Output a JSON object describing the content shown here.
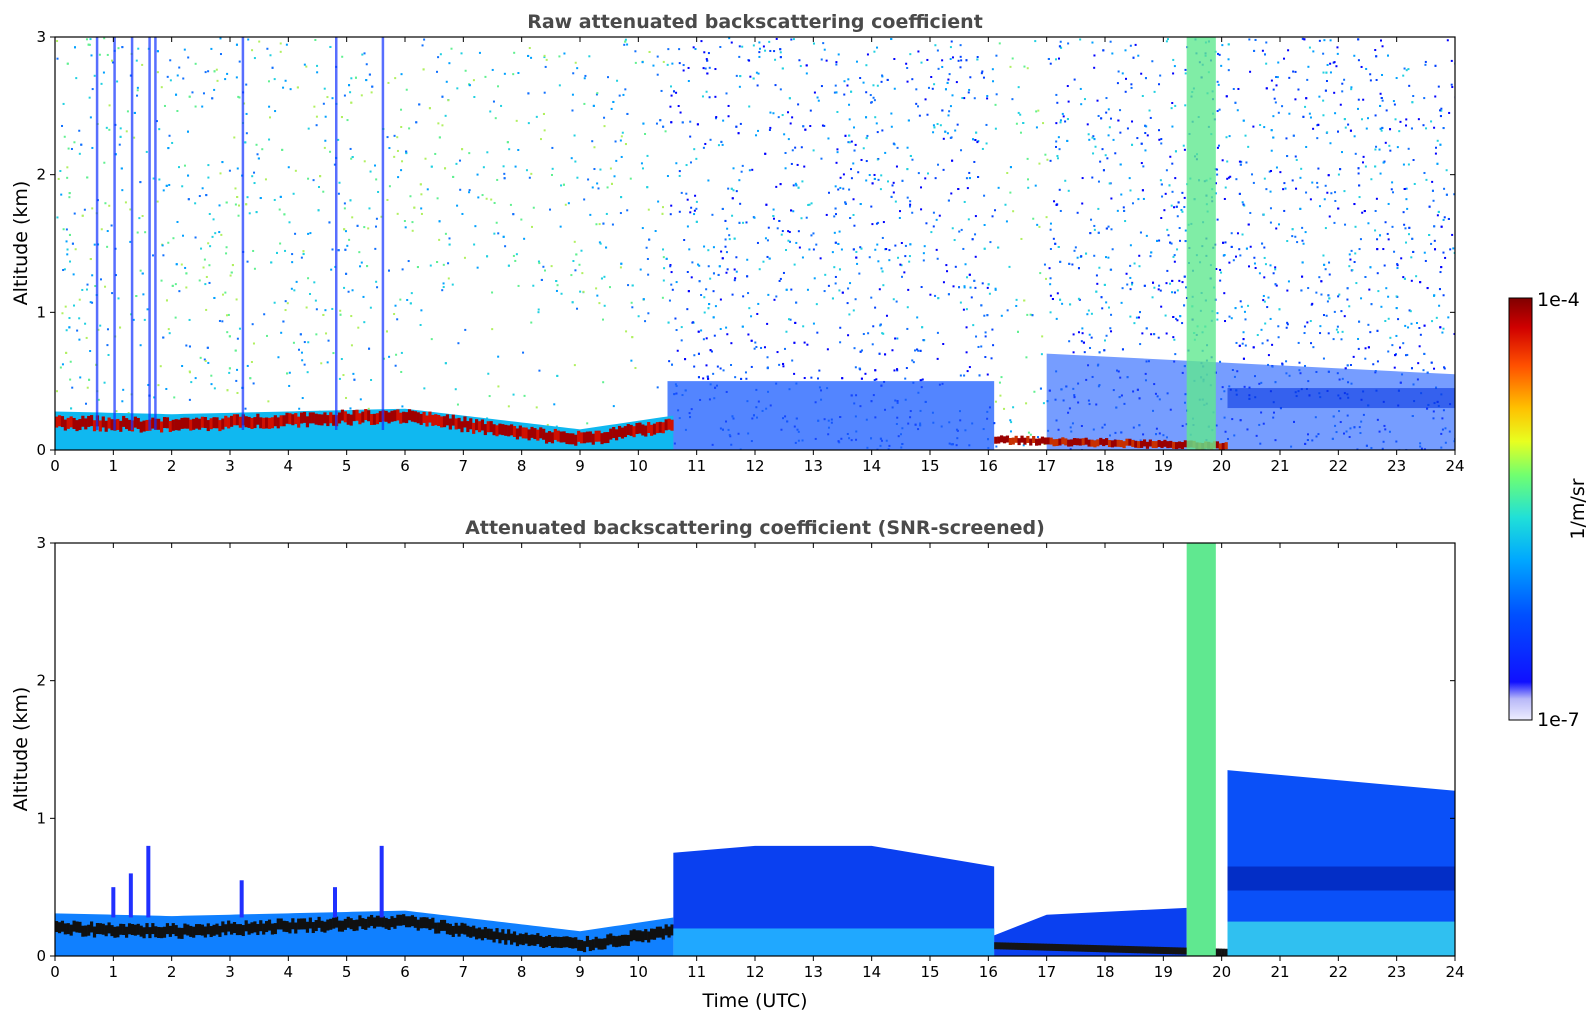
{
  "chart_data": [
    {
      "type": "heatmap",
      "title": "Raw attenuated backscattering coefficient",
      "xlabel": "",
      "ylabel": "Altitude (km)",
      "xlim": [
        0,
        24
      ],
      "ylim": [
        0,
        3
      ],
      "x_ticks": [
        "0",
        "1",
        "2",
        "3",
        "4",
        "5",
        "6",
        "7",
        "8",
        "9",
        "10",
        "11",
        "12",
        "13",
        "14",
        "15",
        "16",
        "17",
        "18",
        "19",
        "20",
        "21",
        "22",
        "23",
        "24"
      ],
      "y_ticks": [
        "0",
        "1",
        "2",
        "3"
      ],
      "features": {
        "aerosol_layer_top_km": [
          {
            "t": 0,
            "z": 0.28
          },
          {
            "t": 2,
            "z": 0.26
          },
          {
            "t": 4,
            "z": 0.28
          },
          {
            "t": 6,
            "z": 0.3
          },
          {
            "t": 8,
            "z": 0.2
          },
          {
            "t": 9,
            "z": 0.15
          },
          {
            "t": 10.6,
            "z": 0.25
          }
        ],
        "strong_layer_km": [
          {
            "t": 0,
            "z": 0.2
          },
          {
            "t": 2,
            "z": 0.18
          },
          {
            "t": 4,
            "z": 0.22
          },
          {
            "t": 6,
            "z": 0.25
          },
          {
            "t": 8,
            "z": 0.12
          },
          {
            "t": 9,
            "z": 0.08
          },
          {
            "t": 10.6,
            "z": 0.18
          }
        ],
        "noise_regions": [
          {
            "t_start": 0,
            "t_end": 10.5,
            "level": "sparse"
          },
          {
            "t_start": 10.5,
            "t_end": 16.1,
            "level": "dense"
          },
          {
            "t_start": 16.1,
            "t_end": 17,
            "level": "sparse"
          },
          {
            "t_start": 17,
            "t_end": 24,
            "level": "dense"
          }
        ],
        "precip_column_utc": [
          19.4,
          19.9
        ],
        "fog_band_utc": [
          16.1,
          20.1
        ]
      }
    },
    {
      "type": "heatmap",
      "title": "Attenuated backscattering coefficient (SNR-screened)",
      "xlabel": "Time (UTC)",
      "ylabel": "Altitude (km)",
      "xlim": [
        0,
        24
      ],
      "ylim": [
        0,
        3
      ],
      "x_ticks": [
        "0",
        "1",
        "2",
        "3",
        "4",
        "5",
        "6",
        "7",
        "8",
        "9",
        "10",
        "11",
        "12",
        "13",
        "14",
        "15",
        "16",
        "17",
        "18",
        "19",
        "20",
        "21",
        "22",
        "23",
        "24"
      ],
      "y_ticks": [
        "0",
        "1",
        "2",
        "3"
      ],
      "features": {
        "screened_layer_top_km": [
          {
            "t": 10.6,
            "z": 0.78
          },
          {
            "t": 12,
            "z": 0.8
          },
          {
            "t": 14,
            "z": 0.78
          },
          {
            "t": 16.1,
            "z": 0.65
          },
          {
            "t": 17,
            "z": 0.3
          },
          {
            "t": 19.4,
            "z": 0.35
          },
          {
            "t": 20.1,
            "z": 1.35
          },
          {
            "t": 24,
            "z": 1.2
          }
        ],
        "precip_column_utc": [
          19.4,
          19.9
        ]
      }
    }
  ],
  "colorbar": {
    "label": "1/m/sr",
    "max_label": "1e-4",
    "min_label": "1e-7",
    "scale": "log"
  },
  "colors": {
    "title": "#4a4a4a",
    "colormap": [
      "#e8e8ff",
      "#c8c8ff",
      "#0000ff",
      "#0060ff",
      "#00b0ff",
      "#20e0d0",
      "#80ff60",
      "#e0ff20",
      "#ffd000",
      "#ff7000",
      "#e00000",
      "#800000"
    ]
  }
}
